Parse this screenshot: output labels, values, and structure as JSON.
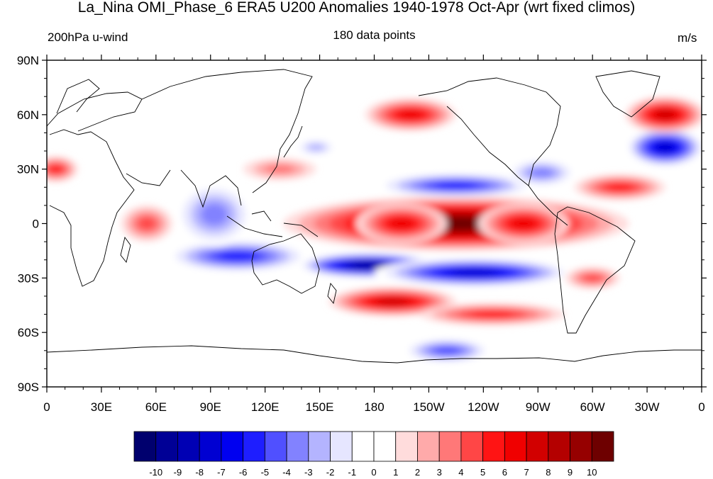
{
  "title": "La_Nina OMI_Phase_6 ERA5 U200 Anomalies 1940-1978 Oct-Apr (wrt fixed climos)",
  "subtitle_left": "200hPa u-wind",
  "subtitle_center": "180 data points",
  "subtitle_right": "m/s",
  "lat_ticks": [
    {
      "label": "90N",
      "lat": 90
    },
    {
      "label": "60N",
      "lat": 60
    },
    {
      "label": "30N",
      "lat": 30
    },
    {
      "label": "0",
      "lat": 0
    },
    {
      "label": "30S",
      "lat": -30
    },
    {
      "label": "60S",
      "lat": -60
    },
    {
      "label": "90S",
      "lat": -90
    }
  ],
  "lon_ticks": [
    {
      "label": "0",
      "lon": 0
    },
    {
      "label": "30E",
      "lon": 30
    },
    {
      "label": "60E",
      "lon": 60
    },
    {
      "label": "90E",
      "lon": 90
    },
    {
      "label": "120E",
      "lon": 120
    },
    {
      "label": "150E",
      "lon": 150
    },
    {
      "label": "180",
      "lon": 180
    },
    {
      "label": "150W",
      "lon": 210
    },
    {
      "label": "120W",
      "lon": 240
    },
    {
      "label": "90W",
      "lon": 270
    },
    {
      "label": "60W",
      "lon": 300
    },
    {
      "label": "30W",
      "lon": 330
    },
    {
      "label": "0",
      "lon": 360
    }
  ],
  "colorbar": {
    "labels": [
      "-10",
      "-9",
      "-8",
      "-7",
      "-6",
      "-5",
      "-4",
      "-3",
      "-2",
      "-1",
      "0",
      "1",
      "2",
      "3",
      "4",
      "5",
      "6",
      "7",
      "8",
      "9",
      "10"
    ],
    "colors": [
      "#00006e",
      "#000096",
      "#0000b4",
      "#0000d2",
      "#0000f0",
      "#1e1eff",
      "#5050ff",
      "#8282ff",
      "#b4b4ff",
      "#e6e6ff",
      "#ffffff",
      "#ffffff",
      "#ffdcdc",
      "#ffaaaa",
      "#ff7878",
      "#ff4646",
      "#ff1414",
      "#f00000",
      "#d20000",
      "#b40000",
      "#960000",
      "#6e0000"
    ]
  },
  "chart_data": {
    "type": "heatmap",
    "variable": "200hPa u-wind anomaly",
    "units": "m/s",
    "xlim": [
      0,
      360
    ],
    "ylim": [
      -90,
      90
    ],
    "value_range": [
      -10,
      10
    ],
    "features": [
      {
        "lon": 225,
        "lat": 0,
        "value": 10
      },
      {
        "lon": 195,
        "lat": 0,
        "value": 6
      },
      {
        "lon": 262,
        "lat": 0,
        "value": 6
      },
      {
        "lon": 177,
        "lat": -23,
        "value": -10
      },
      {
        "lon": 235,
        "lat": -27,
        "value": -8
      },
      {
        "lon": 105,
        "lat": -18,
        "value": -6
      },
      {
        "lon": 92,
        "lat": 5,
        "value": -4
      },
      {
        "lon": 225,
        "lat": 21,
        "value": -6
      },
      {
        "lon": 272,
        "lat": 28,
        "value": -4
      },
      {
        "lon": 340,
        "lat": 42,
        "value": -8
      },
      {
        "lon": 340,
        "lat": 60,
        "value": 7
      },
      {
        "lon": 200,
        "lat": 60,
        "value": 6
      },
      {
        "lon": 315,
        "lat": 20,
        "value": 5
      },
      {
        "lon": 190,
        "lat": -43,
        "value": 7
      },
      {
        "lon": 245,
        "lat": -50,
        "value": 5
      },
      {
        "lon": 55,
        "lat": 0,
        "value": 4
      },
      {
        "lon": 5,
        "lat": 30,
        "value": 5
      },
      {
        "lon": 220,
        "lat": -70,
        "value": -5
      },
      {
        "lon": 300,
        "lat": -30,
        "value": 4
      },
      {
        "lon": 128,
        "lat": 30,
        "value": 3
      },
      {
        "lon": 148,
        "lat": 42,
        "value": -3
      }
    ]
  }
}
